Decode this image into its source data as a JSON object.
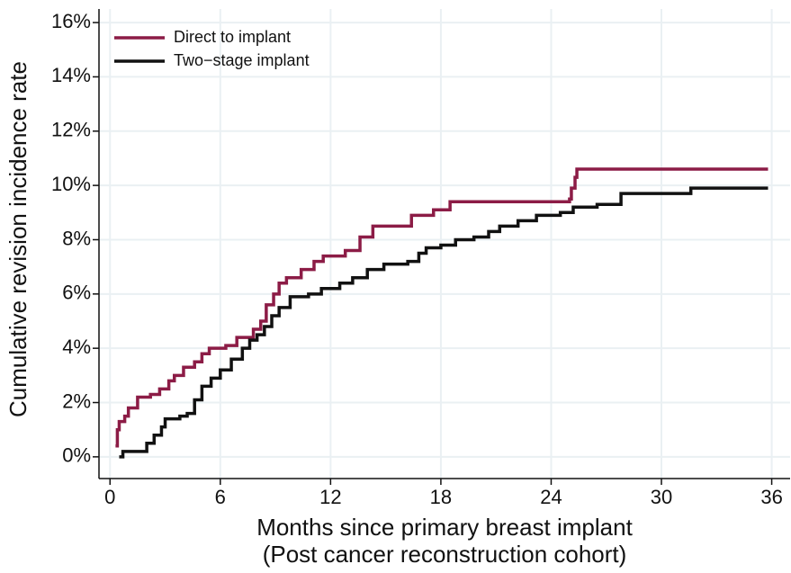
{
  "chart_data": {
    "type": "line",
    "step": "post",
    "ylabel": "Cumulative revision incidence rate",
    "xlabel": [
      "Months since primary breast implant",
      "(Post cancer reconstruction cohort)"
    ],
    "xlim": [
      -0.6,
      37
    ],
    "xticks": [
      0,
      6,
      12,
      18,
      24,
      30,
      36
    ],
    "ylim": [
      -0.8,
      16.5
    ],
    "yticks": [
      {
        "value": 0,
        "label": "0%"
      },
      {
        "value": 2,
        "label": "2%"
      },
      {
        "value": 4,
        "label": "4%"
      },
      {
        "value": 6,
        "label": "6%"
      },
      {
        "value": 8,
        "label": "8%"
      },
      {
        "value": 10,
        "label": "10%"
      },
      {
        "value": 12,
        "label": "12%"
      },
      {
        "value": 14,
        "label": "14%"
      },
      {
        "value": 16,
        "label": "16%"
      }
    ],
    "grid": true,
    "legend": "top-left",
    "series": [
      {
        "name": "Direct to implant",
        "color": "#8c1c46",
        "x": [
          0.3,
          0.4,
          0.5,
          0.8,
          1.0,
          1.5,
          2.2,
          2.7,
          3.2,
          3.5,
          4.0,
          4.6,
          5.0,
          5.4,
          6.3,
          6.9,
          7.8,
          8.2,
          8.5,
          8.9,
          9.2,
          9.6,
          10.4,
          11.1,
          11.6,
          12.8,
          13.6,
          14.3,
          16.4,
          17.6,
          18.5,
          25.0,
          25.1,
          25.3,
          25.4,
          35.8
        ],
        "values": [
          0.4,
          1.0,
          1.3,
          1.5,
          1.8,
          2.2,
          2.3,
          2.5,
          2.8,
          3.0,
          3.3,
          3.5,
          3.8,
          4.0,
          4.1,
          4.4,
          4.7,
          5.0,
          5.6,
          6.0,
          6.4,
          6.6,
          6.9,
          7.2,
          7.4,
          7.6,
          8.1,
          8.5,
          8.9,
          9.1,
          9.4,
          9.5,
          9.9,
          10.3,
          10.6,
          10.6
        ]
      },
      {
        "name": "Two−stage implant",
        "color": "#111111",
        "x": [
          0.5,
          0.7,
          2.0,
          2.4,
          2.8,
          3.0,
          3.8,
          4.2,
          4.6,
          5.0,
          5.5,
          6.0,
          6.6,
          7.2,
          7.6,
          8.0,
          8.4,
          8.8,
          9.2,
          9.8,
          10.8,
          11.5,
          12.5,
          13.2,
          14.0,
          14.9,
          16.2,
          16.8,
          17.2,
          18.0,
          18.8,
          19.8,
          20.6,
          21.2,
          22.2,
          23.2,
          24.5,
          25.2,
          26.5,
          27.8,
          31.6,
          35.8
        ],
        "values": [
          0.0,
          0.2,
          0.5,
          0.8,
          1.1,
          1.4,
          1.5,
          1.6,
          2.1,
          2.6,
          2.9,
          3.2,
          3.6,
          4.0,
          4.3,
          4.5,
          4.8,
          5.2,
          5.5,
          5.9,
          6.0,
          6.2,
          6.4,
          6.6,
          6.9,
          7.1,
          7.2,
          7.5,
          7.7,
          7.8,
          8.0,
          8.1,
          8.3,
          8.5,
          8.7,
          8.9,
          9.0,
          9.2,
          9.3,
          9.7,
          9.9,
          9.9
        ]
      }
    ]
  }
}
